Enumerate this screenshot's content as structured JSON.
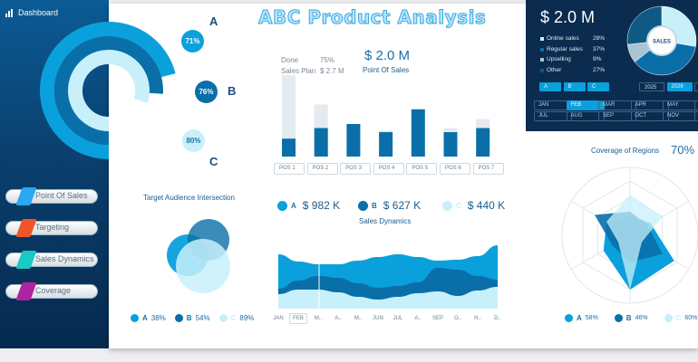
{
  "sidebar": {
    "title": "Dashboard",
    "items": [
      {
        "label": "Point Of Sales",
        "color": "#2aa8f0"
      },
      {
        "label": "Targeting",
        "color": "#f0552a"
      },
      {
        "label": "Sales Dynamics",
        "color": "#18c9c4"
      },
      {
        "label": "Coverage",
        "color": "#b0239e"
      }
    ]
  },
  "header": {
    "title": "ABC Product Analysis"
  },
  "colors": {
    "A": "#0aa0dc",
    "B": "#0a6fa8",
    "C": "#c8f0fa",
    "navy": "#0b2c4f"
  },
  "progress": {
    "items": [
      {
        "name": "A",
        "value": 71,
        "label": "71%"
      },
      {
        "name": "B",
        "value": 76,
        "label": "76%"
      },
      {
        "name": "C",
        "value": 80,
        "label": "80%"
      }
    ]
  },
  "pos": {
    "title": "Point Of Sales",
    "total": "$ 2.0 M",
    "done_label": "Done",
    "done_value": "75%",
    "plan_label": "Sales Plan",
    "plan_value": "$ 2.7 M"
  },
  "chart_data": [
    {
      "type": "bar",
      "title": "Point Of Sales",
      "categories": [
        "POS 1",
        "POS 2",
        "POS 3",
        "POS 4",
        "POS 5",
        "POS 6",
        "POS 7"
      ],
      "series": [
        {
          "name": "Done",
          "values": [
            22,
            35,
            40,
            30,
            58,
            30,
            35
          ]
        },
        {
          "name": "Sales Plan",
          "values": [
            100,
            64,
            40,
            32,
            58,
            35,
            46
          ]
        }
      ]
    },
    {
      "type": "area",
      "title": "Sales Dynamics",
      "categories": [
        "JAN",
        "FEB",
        "M..",
        "A..",
        "M..",
        "JUN",
        "JUL",
        "A..",
        "SEP",
        "O..",
        "N..",
        "D.."
      ],
      "selected": "FEB",
      "series": [
        {
          "name": "C",
          "values": [
            16,
            21,
            21,
            18,
            13,
            10,
            13,
            17,
            19,
            14,
            20,
            24
          ]
        },
        {
          "name": "B",
          "values": [
            6,
            10,
            15,
            16,
            15,
            13,
            12,
            12,
            26,
            29,
            16,
            8
          ]
        },
        {
          "name": "A",
          "values": [
            38,
            21,
            13,
            15,
            25,
            34,
            35,
            28,
            8,
            11,
            22,
            38
          ]
        }
      ]
    },
    {
      "type": "pie",
      "title": "SALES",
      "categories": [
        "Online sales",
        "Regular sales",
        "Upselling",
        "Other"
      ],
      "values": [
        28,
        37,
        9,
        27
      ],
      "colors": [
        "#c8f0fa",
        "#0a6fa8",
        "#a9c4d4",
        "#0e5a85"
      ]
    },
    {
      "type": "radar",
      "title": "Coverage of Regions",
      "axes": 6,
      "series": [
        {
          "name": "A",
          "values": [
            0.3,
            0.35,
            0.75,
            0.8,
            0.45,
            0.4
          ]
        },
        {
          "name": "B",
          "values": [
            0.35,
            0.3,
            0.55,
            0.4,
            0.3,
            0.6
          ]
        },
        {
          "name": "C",
          "values": [
            0.6,
            0.55,
            0.2,
            0.8,
            0.2,
            0.4
          ]
        }
      ]
    },
    {
      "type": "venn",
      "title": "Target Audience Intersection",
      "series": [
        {
          "name": "A",
          "value": 38
        },
        {
          "name": "B",
          "value": 54
        },
        {
          "name": "C",
          "value": 89
        }
      ]
    }
  ],
  "sales_legend": [
    {
      "name": "A",
      "value": "$ 982 K"
    },
    {
      "name": "B",
      "value": "$ 627 K"
    },
    {
      "name": "C",
      "value": "$ 440 K"
    }
  ],
  "audience": {
    "title": "Target Audience Intersection",
    "legend": [
      {
        "name": "A",
        "value": "38%"
      },
      {
        "name": "B",
        "value": "54%"
      },
      {
        "name": "C",
        "value": "89%"
      }
    ]
  },
  "coverage": {
    "title": "Coverage of Regions",
    "value": "70%",
    "legend": [
      {
        "name": "A",
        "value": "58%"
      },
      {
        "name": "B",
        "value": "46%"
      },
      {
        "name": "C",
        "value": "60%"
      }
    ]
  },
  "summary": {
    "total": "$ 2.0 M",
    "donut_label": "SALES",
    "rows": [
      {
        "label": "Online sales",
        "value": "28%",
        "color": "#c8f0fa"
      },
      {
        "label": "Regular sales",
        "value": "37%",
        "color": "#0a6fa8"
      },
      {
        "label": "Upselling",
        "value": "9%",
        "color": "#a9c4d4"
      },
      {
        "label": "Other",
        "value": "27%",
        "color": "#0e5a85"
      }
    ],
    "filters": [
      "A",
      "B",
      "C"
    ],
    "years": [
      "2025",
      "2026"
    ],
    "selected_year": "2026",
    "months": [
      "JAN",
      "FEB",
      "MAR",
      "APR",
      "MAY",
      "JUL",
      "AUG",
      "SEP",
      "OCT",
      "NOV"
    ],
    "selected_month": "FEB"
  }
}
